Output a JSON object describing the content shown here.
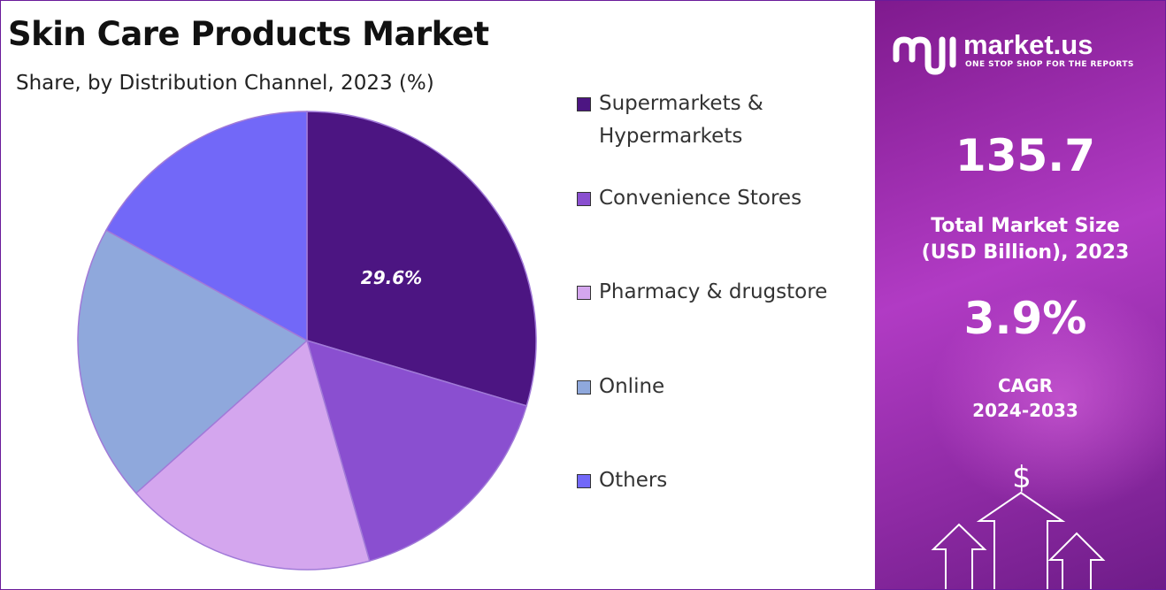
{
  "chart_data": {
    "type": "pie",
    "title": "Skin Care Products Market",
    "subtitle": "Share, by Distribution Channel, 2023 (%)",
    "slices": [
      {
        "name": "Supermarkets & Hypermarkets",
        "label_lines": [
          "Supermarkets &",
          "Hypermarkets"
        ],
        "value": 29.6,
        "color": "#4c1582",
        "data_label": "29.6%"
      },
      {
        "name": "Convenience Stores",
        "label_lines": [
          "Convenience Stores"
        ],
        "value": 16.0,
        "color": "#8a4fd0",
        "data_label": ""
      },
      {
        "name": "Pharmacy & drugstore",
        "label_lines": [
          "Pharmacy & drugstore"
        ],
        "value": 17.8,
        "color": "#d4a6ee",
        "data_label": ""
      },
      {
        "name": "Online",
        "label_lines": [
          "Online"
        ],
        "value": 19.6,
        "color": "#8fa8dc",
        "data_label": ""
      },
      {
        "name": "Others",
        "label_lines": [
          "Others"
        ],
        "value": 17.0,
        "color": "#7268f8",
        "data_label": ""
      }
    ],
    "legend_position": "right"
  },
  "sidebar": {
    "brand_name": "market.us",
    "brand_tagline": "ONE STOP SHOP FOR THE REPORTS",
    "market_size_value": "135.7",
    "market_size_label_line1": "Total Market Size",
    "market_size_label_line2": "(USD Billion), 2023",
    "cagr_value": "3.9%",
    "cagr_label_line1": "CAGR",
    "cagr_label_line2": "2024-2033",
    "dollar_symbol": "$"
  }
}
